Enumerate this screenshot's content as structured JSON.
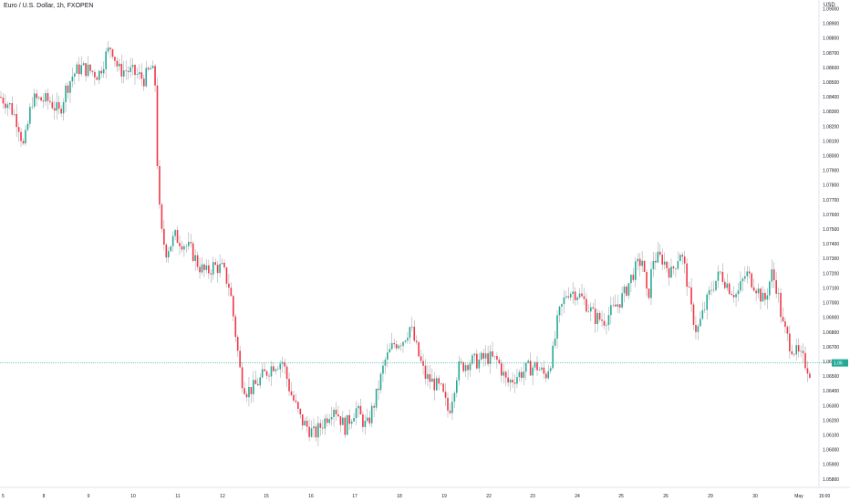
{
  "header": {
    "title": "Euro / U.S. Dollar, 1h, FXOPEN",
    "currency": "USD"
  },
  "colors": {
    "up": "#22ab94",
    "down": "#f23645",
    "wick": "#9598a1",
    "line": "#22ab94"
  },
  "chart_data": {
    "type": "candlestick",
    "title": "Euro / U.S. Dollar, 1h, FXOPEN",
    "ylim": [
      1.0583,
      1.0904
    ],
    "y_ticks": [
      "1.09100",
      "1.09000",
      "1.08900",
      "1.08800",
      "1.08700",
      "1.08600",
      "1.08500",
      "1.08400",
      "1.08300",
      "1.08200",
      "1.08100",
      "1.08000",
      "1.07900",
      "1.07800",
      "1.07700",
      "1.07600",
      "1.07500",
      "1.07400",
      "1.07300",
      "1.07200",
      "1.07100",
      "1.07000",
      "1.06900",
      "1.06800",
      "1.06700",
      "1.06600",
      "1.06500",
      "1.06400",
      "1.06300",
      "1.06200",
      "1.06100",
      "1.06000",
      "1.05900",
      "1.05800"
    ],
    "x_ticks": [
      "5",
      "8",
      "9",
      "10",
      "11",
      "12",
      "15",
      "16",
      "17",
      "18",
      "19",
      "22",
      "23",
      "24",
      "25",
      "26",
      "29",
      "30",
      "May",
      "15:00"
    ],
    "last_price_label": "1.06"
  },
  "anchors": [
    [
      0,
      1.084
    ],
    [
      10,
      1.0835
    ],
    [
      20,
      1.0822
    ],
    [
      26,
      1.0805
    ],
    [
      35,
      1.0838
    ],
    [
      45,
      1.0838
    ],
    [
      55,
      1.0837
    ],
    [
      65,
      1.0829
    ],
    [
      72,
      1.0845
    ],
    [
      80,
      1.0855
    ],
    [
      88,
      1.086
    ],
    [
      98,
      1.0858
    ],
    [
      108,
      1.0855
    ],
    [
      116,
      1.0868
    ],
    [
      122,
      1.0875
    ],
    [
      130,
      1.0858
    ],
    [
      140,
      1.0858
    ],
    [
      150,
      1.0855
    ],
    [
      158,
      1.0852
    ],
    [
      166,
      1.086
    ],
    [
      170,
      1.085
    ],
    [
      173,
      1.0785
    ],
    [
      176,
      1.075
    ],
    [
      182,
      1.0735
    ],
    [
      192,
      1.0745
    ],
    [
      202,
      1.074
    ],
    [
      210,
      1.0735
    ],
    [
      218,
      1.0725
    ],
    [
      226,
      1.072
    ],
    [
      234,
      1.0725
    ],
    [
      244,
      1.0723
    ],
    [
      252,
      1.071
    ],
    [
      258,
      1.068
    ],
    [
      264,
      1.065
    ],
    [
      270,
      1.064
    ],
    [
      278,
      1.0642
    ],
    [
      288,
      1.065
    ],
    [
      300,
      1.0658
    ],
    [
      310,
      1.066
    ],
    [
      318,
      1.064
    ],
    [
      330,
      1.062
    ],
    [
      345,
      1.061
    ],
    [
      356,
      1.062
    ],
    [
      366,
      1.063
    ],
    [
      378,
      1.0615
    ],
    [
      390,
      1.0628
    ],
    [
      402,
      1.0615
    ],
    [
      412,
      1.0635
    ],
    [
      422,
      1.066
    ],
    [
      432,
      1.0672
    ],
    [
      442,
      1.0675
    ],
    [
      450,
      1.0684
    ],
    [
      456,
      1.067
    ],
    [
      466,
      1.065
    ],
    [
      476,
      1.0645
    ],
    [
      484,
      1.064
    ],
    [
      492,
      1.0625
    ],
    [
      502,
      1.0655
    ],
    [
      514,
      1.066
    ],
    [
      524,
      1.066
    ],
    [
      534,
      1.0663
    ],
    [
      546,
      1.066
    ],
    [
      556,
      1.0645
    ],
    [
      566,
      1.065
    ],
    [
      578,
      1.0655
    ],
    [
      588,
      1.0657
    ],
    [
      598,
      1.065
    ],
    [
      606,
      1.0665
    ],
    [
      612,
      1.069
    ],
    [
      622,
      1.0708
    ],
    [
      632,
      1.0707
    ],
    [
      642,
      1.07
    ],
    [
      652,
      1.069
    ],
    [
      662,
      1.0688
    ],
    [
      672,
      1.0695
    ],
    [
      684,
      1.0705
    ],
    [
      694,
      1.072
    ],
    [
      704,
      1.073
    ],
    [
      710,
      1.07
    ],
    [
      716,
      1.073
    ],
    [
      726,
      1.073
    ],
    [
      736,
      1.072
    ],
    [
      746,
      1.0735
    ],
    [
      752,
      1.072
    ],
    [
      758,
      1.0695
    ],
    [
      764,
      1.068
    ],
    [
      772,
      1.0695
    ],
    [
      780,
      1.071
    ],
    [
      790,
      1.072
    ],
    [
      800,
      1.071
    ],
    [
      808,
      1.0705
    ],
    [
      818,
      1.072
    ],
    [
      828,
      1.0712
    ],
    [
      838,
      1.07
    ],
    [
      846,
      1.072
    ],
    [
      852,
      1.071
    ],
    [
      858,
      1.0685
    ],
    [
      866,
      1.0672
    ],
    [
      874,
      1.0665
    ],
    [
      882,
      1.066
    ],
    [
      888,
      1.0653
    ],
    [
      891,
      1.0659
    ]
  ]
}
